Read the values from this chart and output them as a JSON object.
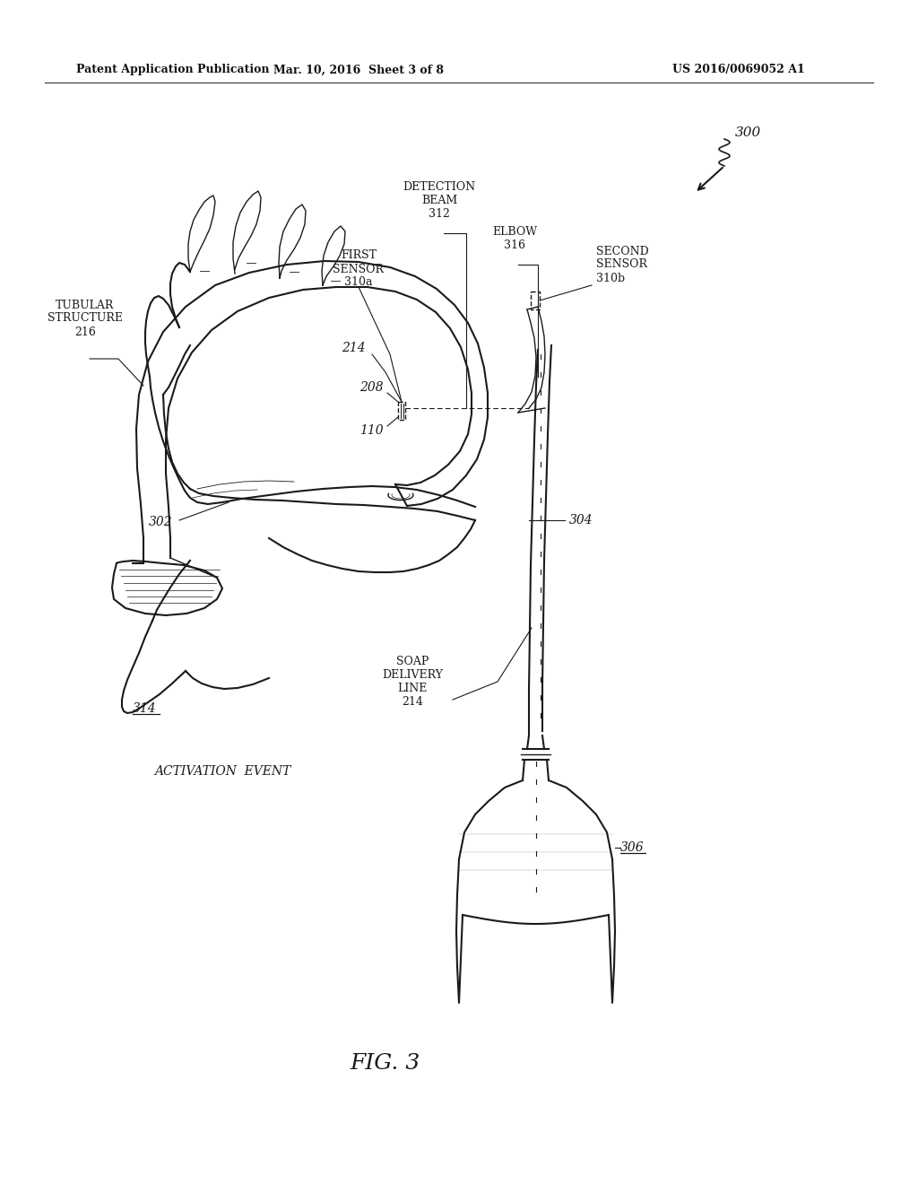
{
  "bg_color": "#ffffff",
  "header_left": "Patent Application Publication",
  "header_mid": "Mar. 10, 2016  Sheet 3 of 8",
  "header_right": "US 2016/0069052 A1",
  "fig_label": "FIG. 3",
  "ref_number": "300",
  "labels": {
    "tubular_structure": "TUBULAR\nSTRUCTURE\n216",
    "first_sensor": "FIRST\nSENSOR\n310a",
    "detection_beam": "DETECTION\nBEAM\n312",
    "elbow": "ELBOW\n316",
    "second_sensor": "SECOND\nSENSOR\n310b",
    "label_214_top": "214",
    "label_208": "208",
    "label_110": "110",
    "label_302": "302",
    "label_304": "304",
    "soap_delivery": "SOAP\nDELIVERY\nLINE\n214",
    "label_314": "314",
    "activation_event": "ACTIVATION  EVENT",
    "label_306": "306"
  }
}
